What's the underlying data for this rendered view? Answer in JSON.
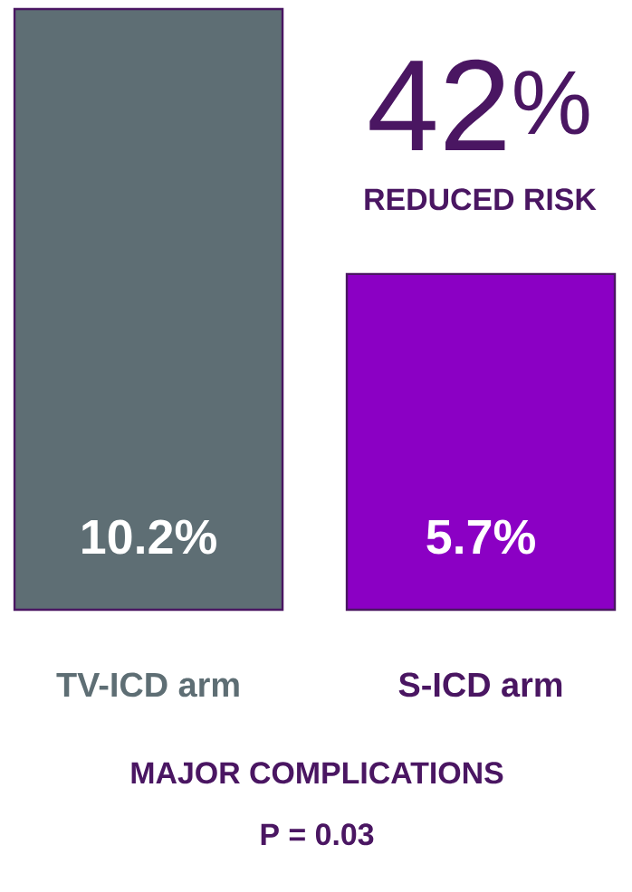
{
  "chart_data": {
    "type": "bar",
    "title": "MAJOR COMPLICATIONS",
    "categories": [
      "TV-ICD arm",
      "S-ICD arm"
    ],
    "values": [
      10.2,
      5.7
    ],
    "colors": [
      "#5e6e74",
      "#8b00c4"
    ],
    "value_labels": [
      "10.2%",
      "5.7%"
    ],
    "annotations": [
      "42$^{%}$",
      "REDUCED RISK",
      "P = 0.03"
    ]
  }
}
